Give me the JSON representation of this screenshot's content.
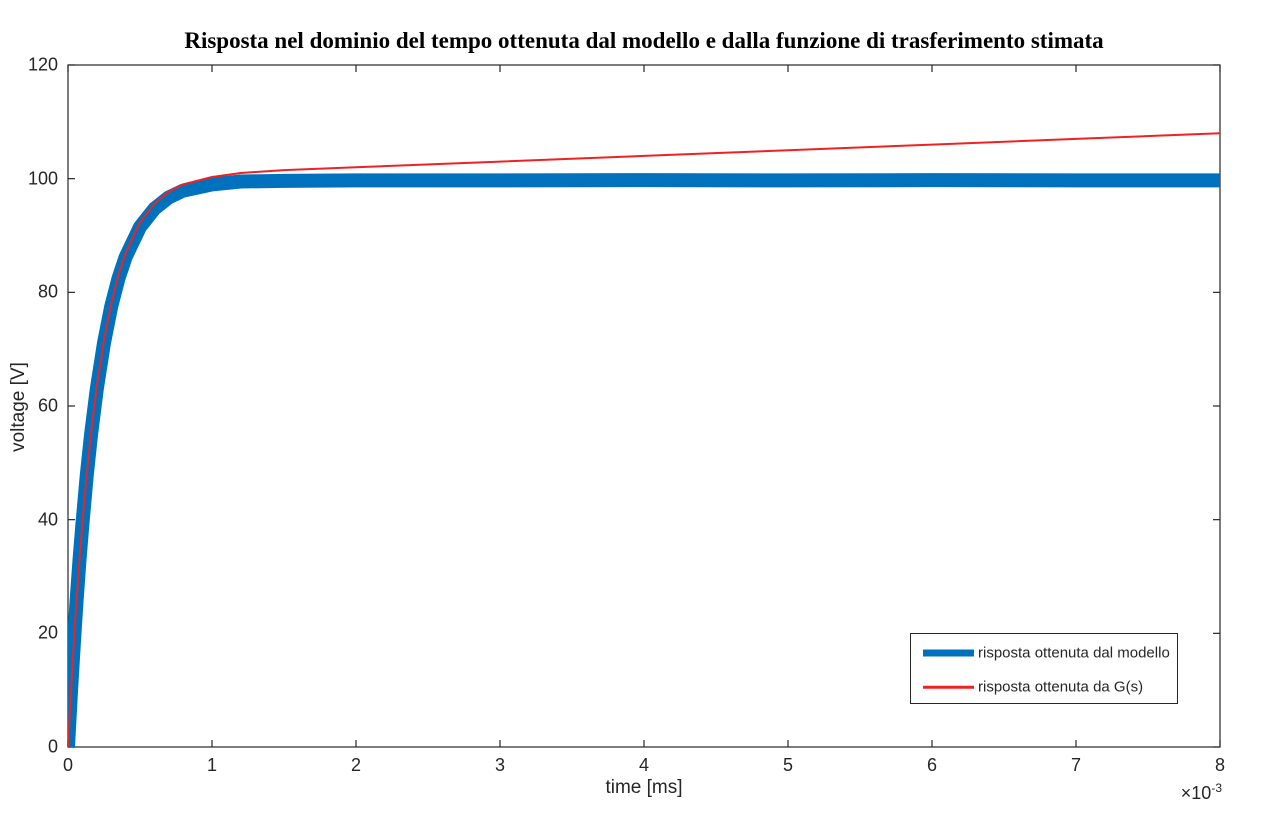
{
  "chart_data": {
    "type": "line",
    "title": "Risposta nel dominio del tempo ottenuta dal modello e dalla funzione di trasferimento stimata",
    "xlabel": "time [ms]",
    "ylabel": "voltage [V]",
    "xlim": [
      0,
      8
    ],
    "ylim": [
      0,
      120
    ],
    "x_multiplier_prefix": "×10",
    "x_multiplier_exponent": "-3",
    "x_tick_labels": [
      "0",
      "1",
      "2",
      "3",
      "4",
      "5",
      "6",
      "7",
      "8"
    ],
    "x_tick_values": [
      0,
      1,
      2,
      3,
      4,
      5,
      6,
      7,
      8
    ],
    "y_tick_labels": [
      "0",
      "20",
      "40",
      "60",
      "80",
      "100",
      "120"
    ],
    "y_tick_values": [
      0,
      20,
      40,
      60,
      80,
      100,
      120
    ],
    "grid": false,
    "axis_color": "#262626",
    "legend": {
      "position": "south-east",
      "entries": [
        {
          "label": "risposta ottenuta dal modello",
          "color": "#0072BD",
          "style": "thick"
        },
        {
          "label": "risposta ottenuta da G(s)",
          "color": "#EF2222",
          "style": "thin"
        }
      ]
    },
    "series": [
      {
        "name": "risposta ottenuta dal modello",
        "color": "#0072BD",
        "stroke_px": 14,
        "points": [
          [
            0,
            0
          ],
          [
            0.02,
            9.5
          ],
          [
            0.04,
            18.1
          ],
          [
            0.06,
            25.8
          ],
          [
            0.08,
            32.9
          ],
          [
            0.1,
            39.2
          ],
          [
            0.13,
            47.7
          ],
          [
            0.16,
            54.9
          ],
          [
            0.2,
            63.0
          ],
          [
            0.25,
            71.1
          ],
          [
            0.3,
            77.5
          ],
          [
            0.35,
            82.4
          ],
          [
            0.4,
            86.2
          ],
          [
            0.5,
            91.5
          ],
          [
            0.6,
            94.7
          ],
          [
            0.7,
            96.7
          ],
          [
            0.8,
            97.9
          ],
          [
            1.0,
            99.0
          ],
          [
            1.2,
            99.5
          ],
          [
            1.5,
            99.6
          ],
          [
            2,
            99.7
          ],
          [
            3,
            99.7
          ],
          [
            4,
            99.75
          ],
          [
            5,
            99.7
          ],
          [
            6,
            99.75
          ],
          [
            7,
            99.7
          ],
          [
            8,
            99.7
          ]
        ]
      },
      {
        "name": "risposta ottenuta da G(s)",
        "color": "#EF2222",
        "stroke_px": 2,
        "points": [
          [
            0,
            0
          ],
          [
            0.02,
            9.6
          ],
          [
            0.04,
            18.2
          ],
          [
            0.06,
            26.0
          ],
          [
            0.08,
            33.1
          ],
          [
            0.1,
            39.4
          ],
          [
            0.13,
            47.9
          ],
          [
            0.16,
            55.2
          ],
          [
            0.2,
            63.4
          ],
          [
            0.25,
            71.6
          ],
          [
            0.3,
            78.0
          ],
          [
            0.35,
            83.0
          ],
          [
            0.4,
            86.9
          ],
          [
            0.5,
            92.3
          ],
          [
            0.6,
            95.6
          ],
          [
            0.7,
            97.7
          ],
          [
            0.8,
            99.0
          ],
          [
            1.0,
            100.3
          ],
          [
            1.2,
            101.0
          ],
          [
            1.5,
            101.5
          ],
          [
            2,
            102.0
          ],
          [
            3,
            103.0
          ],
          [
            4,
            104.0
          ],
          [
            5,
            105.0
          ],
          [
            6,
            106.0
          ],
          [
            7,
            107.0
          ],
          [
            8,
            108.0
          ]
        ]
      }
    ]
  }
}
